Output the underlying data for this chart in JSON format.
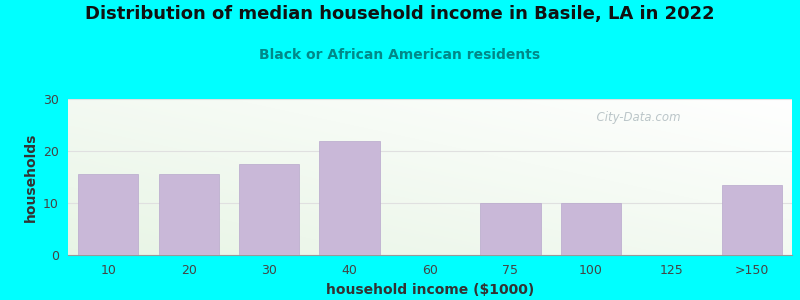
{
  "title": "Distribution of median household income in Basile, LA in 2022",
  "subtitle": "Black or African American residents",
  "xlabel": "household income ($1000)",
  "ylabel": "households",
  "background_color": "#00FFFF",
  "bar_color": "#c9b8d8",
  "bar_edge_color": "#b8a8cc",
  "categories": [
    "10",
    "20",
    "30",
    "40",
    "60",
    "75",
    "100",
    "125",
    ">150"
  ],
  "values": [
    15.5,
    15.5,
    17.5,
    22,
    0,
    10,
    10,
    0,
    13.5
  ],
  "ylim": [
    0,
    30
  ],
  "yticks": [
    0,
    10,
    20,
    30
  ],
  "title_fontsize": 13,
  "subtitle_fontsize": 10,
  "axis_label_fontsize": 10,
  "tick_fontsize": 9,
  "watermark_text": "  City-Data.com",
  "watermark_color": "#b0bcc0",
  "plot_bg_colors": [
    "#e8f5e0",
    "#f8fffa",
    "#ffffff"
  ],
  "grid_color": "#e0e0e0",
  "subtitle_color": "#008888",
  "title_color": "#111111"
}
